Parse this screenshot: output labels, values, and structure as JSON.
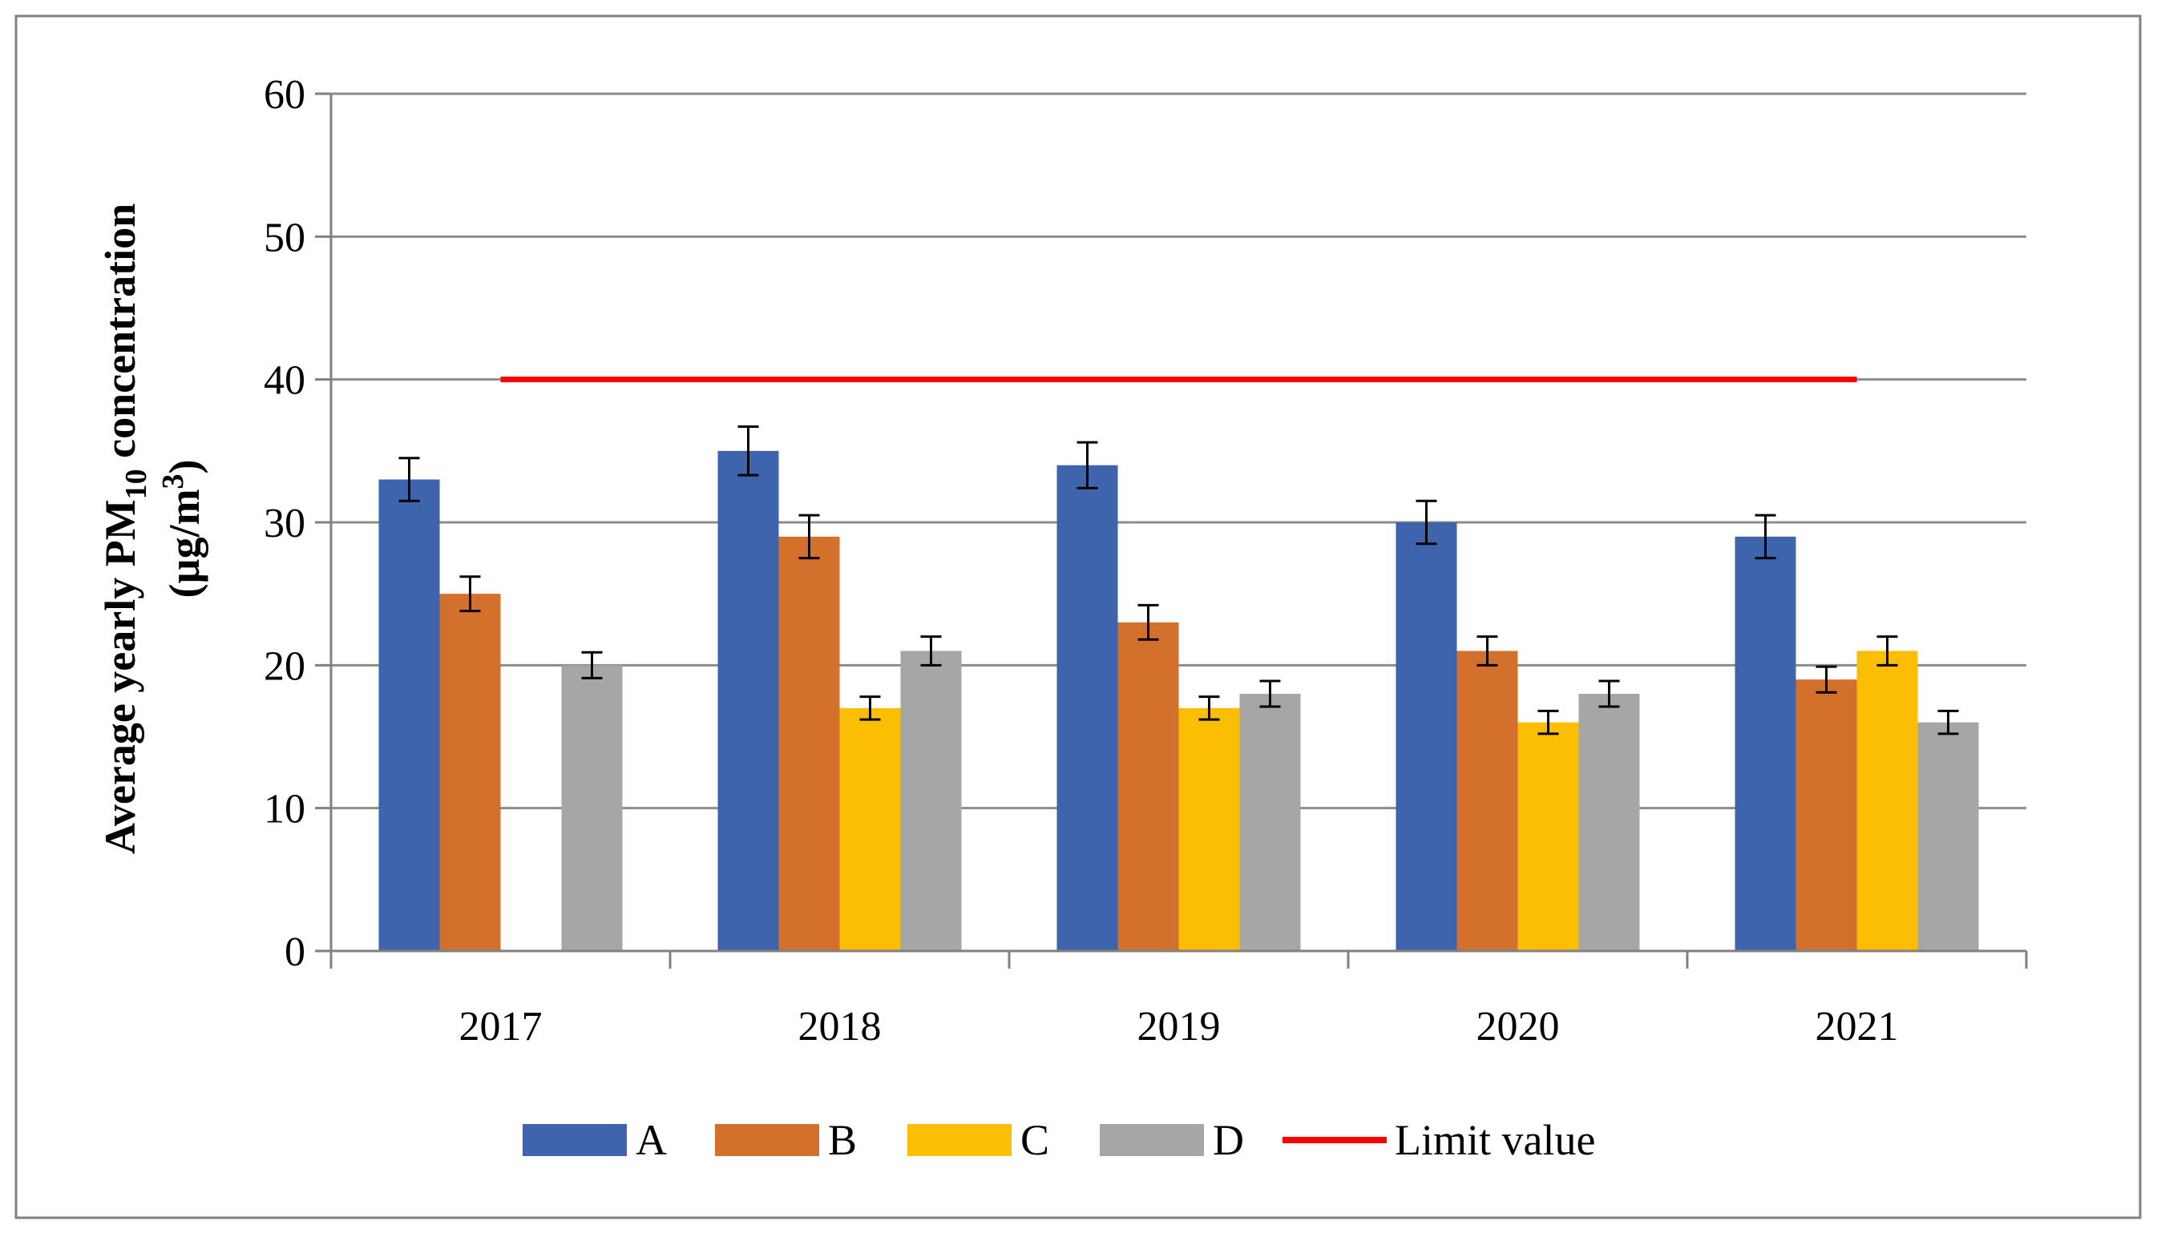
{
  "chart_data": {
    "type": "bar",
    "title": "",
    "xlabel": "",
    "ylabel_main": "Average yearly PM",
    "ylabel_sub": "10",
    "ylabel_tail": " concentration",
    "ylabel_unit_pre": "(µg/m",
    "ylabel_unit_sup": "3",
    "ylabel_unit_post": ")",
    "ylim": [
      0,
      60
    ],
    "yticks": [
      0,
      10,
      20,
      30,
      40,
      50,
      60
    ],
    "categories": [
      "2017",
      "2018",
      "2019",
      "2020",
      "2021"
    ],
    "series": [
      {
        "name": "A",
        "color": "#3d64ad",
        "values": [
          33,
          35,
          34,
          30,
          29
        ],
        "errors": [
          1.5,
          1.7,
          1.6,
          1.5,
          1.5
        ]
      },
      {
        "name": "B",
        "color": "#d2702c",
        "values": [
          25,
          29,
          23,
          21,
          19
        ],
        "errors": [
          1.2,
          1.5,
          1.2,
          1.0,
          0.9
        ]
      },
      {
        "name": "C",
        "color": "#fcbd05",
        "values": [
          null,
          17,
          17,
          16,
          21
        ],
        "errors": [
          null,
          0.8,
          0.8,
          0.8,
          1.0
        ]
      },
      {
        "name": "D",
        "color": "#a6a6a6",
        "values": [
          20,
          21,
          18,
          18,
          16
        ],
        "errors": [
          0.9,
          1.0,
          0.9,
          0.9,
          0.8
        ]
      }
    ],
    "limit_line": {
      "name": "Limit value",
      "value": 40,
      "color": "#ff0000"
    },
    "legend_position": "bottom",
    "grid": true
  }
}
